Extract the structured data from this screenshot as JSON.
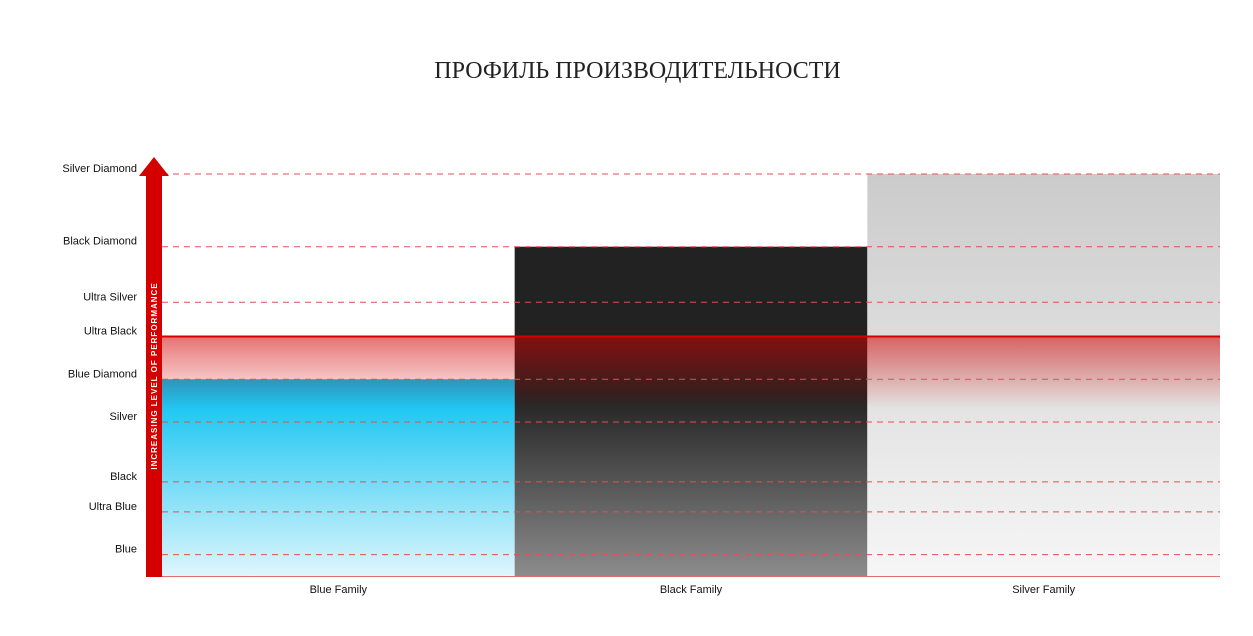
{
  "page": {
    "title": "ПРОФИЛЬ ПРОИЗВОДИТЕЛЬНОСТИ"
  },
  "chart_data": {
    "type": "bar",
    "ylabel": "INCREASING LEVEL OF PERFORMANCE",
    "levels": [
      "Blue",
      "Ultra Blue",
      "Black",
      "Silver",
      "Blue Diamond",
      "Ultra Black",
      "Ultra Silver",
      "Black Diamond",
      "Silver Diamond"
    ],
    "level_values": [
      0.5,
      1.5,
      2.2,
      3.6,
      4.6,
      5.6,
      6.4,
      7.7,
      9.4
    ],
    "categories": [
      "Blue Family",
      "Black Family",
      "Silver Family"
    ],
    "values": [
      4.6,
      7.7,
      9.4
    ],
    "highlight_level": "Ultra Black",
    "ylim": [
      0,
      9.4
    ],
    "grid": true,
    "colors": {
      "axis": "#d40000",
      "grid": "#e05050",
      "blue_family": "#00bff0",
      "black_family": "#222222",
      "silver_family": "#cccccc"
    }
  }
}
